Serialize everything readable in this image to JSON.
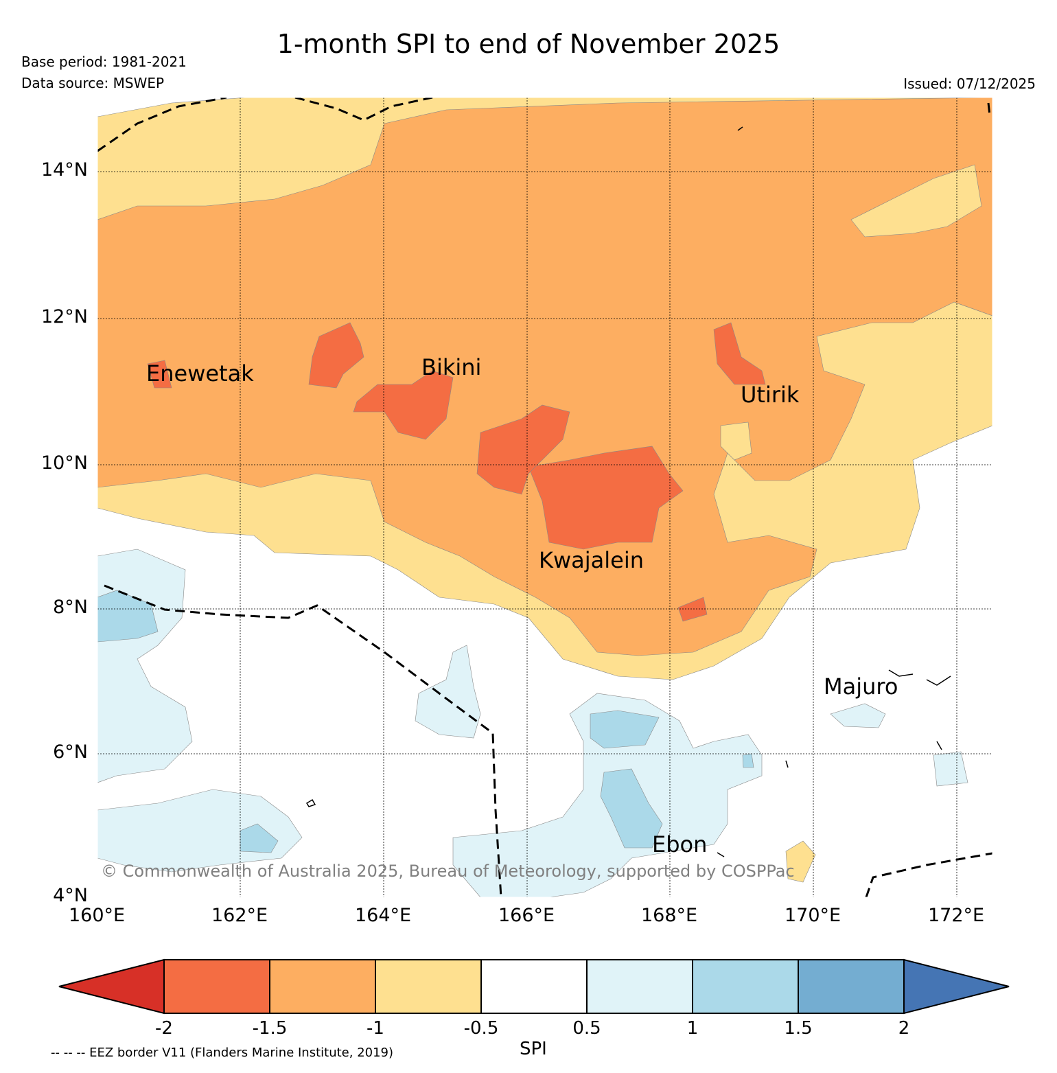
{
  "title": "1-month SPI to end of November 2025",
  "base_period": "Base period: 1981-2021",
  "data_source": "Data source: MSWEP",
  "issued": "Issued: 07/12/2025",
  "copyright": "© Commonwealth of Australia 2025, Bureau of Meteorology, supported by COSPPac",
  "lat_ticks": [
    "14°N",
    "12°N",
    "10°N",
    "8°N",
    "6°N",
    "4°N"
  ],
  "lon_ticks": [
    "160°E",
    "162°E",
    "164°E",
    "166°E",
    "168°E",
    "170°E",
    "172°E"
  ],
  "places": [
    {
      "name": "Enewetak"
    },
    {
      "name": "Bikini"
    },
    {
      "name": "Utirik"
    },
    {
      "name": "Kwajalein"
    },
    {
      "name": "Majuro"
    },
    {
      "name": "Ebon"
    }
  ],
  "colorbar": {
    "title": "SPI",
    "labels": [
      "-2",
      "-1.5",
      "-1",
      "-0.5",
      "0.5",
      "1",
      "1.5",
      "2"
    ],
    "colors": [
      "#d73027",
      "#f46d43",
      "#fdae61",
      "#fee090",
      "#ffffff",
      "#e0f3f8",
      "#abd9e9",
      "#74add1",
      "#4575b4"
    ]
  },
  "eez_note": "-- -- -- EEZ border V11 (Flanders Marine Institute, 2019)"
}
